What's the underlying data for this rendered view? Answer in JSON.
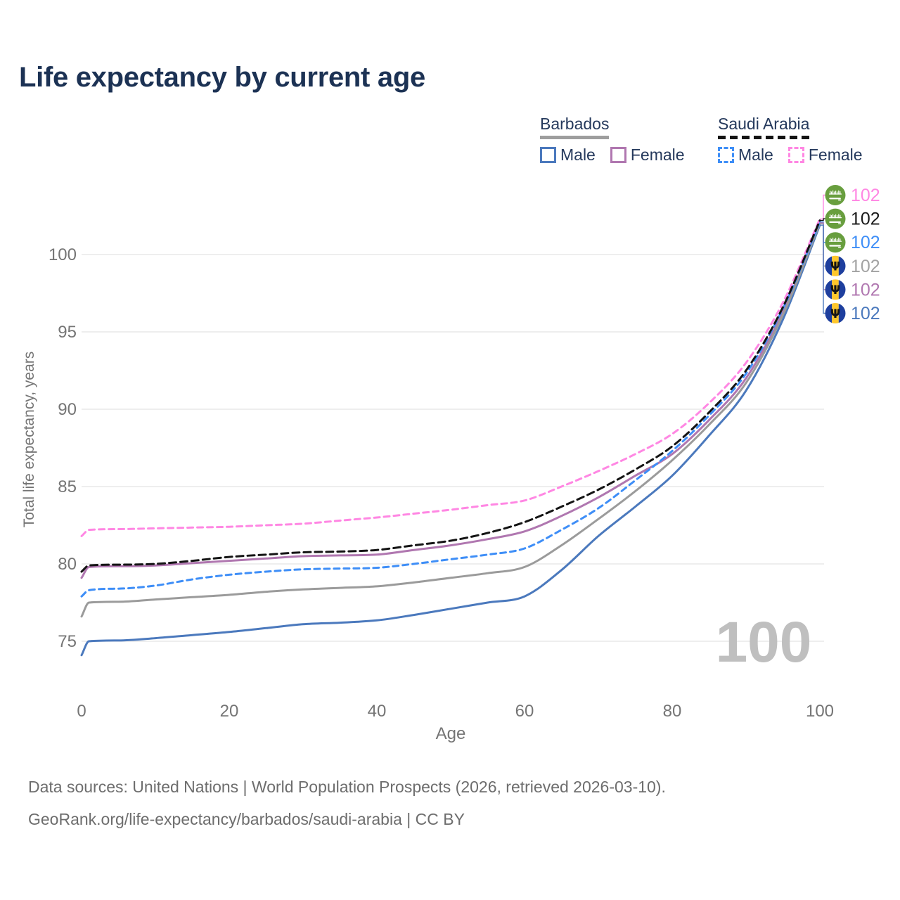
{
  "title": "Life expectancy by current age",
  "legend": {
    "groups": [
      {
        "label": "Barbados",
        "line_style": "solid",
        "line_color": "#9e9e9e",
        "items": [
          {
            "label": "Male",
            "color": "#4b79bd",
            "dashed": false
          },
          {
            "label": "Female",
            "color": "#b077b0",
            "dashed": false
          }
        ]
      },
      {
        "label": "Saudi Arabia",
        "line_style": "dashed",
        "line_color": "#141414",
        "items": [
          {
            "label": "Male",
            "color": "#3e8ef7",
            "dashed": true
          },
          {
            "label": "Female",
            "color": "#ff87e3",
            "dashed": true
          }
        ]
      }
    ]
  },
  "watermark": "100",
  "footer": {
    "line1": "Data sources: United Nations | World Population Prospects (2026, retrieved 2026-03-10).",
    "line2": "GeoRank.org/life-expectancy/barbados/saudi-arabia | CC BY"
  },
  "chart_data": {
    "type": "line",
    "title": "Life expectancy by current age",
    "xlabel": "Age",
    "ylabel": "Total life expectancy, years",
    "xlim": [
      0,
      100
    ],
    "ylim": [
      74,
      103
    ],
    "x_ticks": [
      0,
      20,
      40,
      60,
      80,
      100
    ],
    "y_ticks": [
      75,
      80,
      85,
      90,
      95,
      100
    ],
    "grid": "horizontal-only",
    "legend_position": "top-right",
    "x": [
      0,
      1,
      5,
      10,
      15,
      20,
      25,
      30,
      35,
      40,
      45,
      50,
      55,
      60,
      65,
      70,
      75,
      80,
      85,
      90,
      95,
      100
    ],
    "series": [
      {
        "name": "Saudi Arabia Female",
        "country": "Saudi Arabia",
        "sex": "Female",
        "color": "#ff87e3",
        "dashed": true,
        "flag_icon": "saudi-arabia-flag-icon",
        "end_label": "102",
        "end_label_color": "#ff87e3",
        "values": [
          81.8,
          82.2,
          82.25,
          82.3,
          82.35,
          82.4,
          82.5,
          82.6,
          82.8,
          83.0,
          83.25,
          83.5,
          83.8,
          84.1,
          85.0,
          86.0,
          87.1,
          88.4,
          90.4,
          93.0,
          96.9,
          102.3
        ]
      },
      {
        "name": "Saudi Arabia Total",
        "country": "Saudi Arabia",
        "sex": "Both",
        "color": "#141414",
        "dashed": true,
        "flag_icon": "saudi-arabia-flag-icon",
        "end_label": "102",
        "end_label_color": "#1a1a1a",
        "values": [
          79.5,
          79.9,
          79.95,
          80.0,
          80.2,
          80.45,
          80.6,
          80.75,
          80.8,
          80.9,
          81.2,
          81.5,
          82.0,
          82.7,
          83.7,
          84.8,
          86.1,
          87.6,
          89.8,
          92.5,
          96.6,
          102.2
        ]
      },
      {
        "name": "Saudi Arabia Male",
        "country": "Saudi Arabia",
        "sex": "Male",
        "color": "#3e8ef7",
        "dashed": true,
        "flag_icon": "saudi-arabia-flag-icon",
        "end_label": "102",
        "end_label_color": "#3e8ef7",
        "values": [
          77.9,
          78.3,
          78.4,
          78.6,
          79.0,
          79.3,
          79.5,
          79.65,
          79.7,
          79.75,
          80.0,
          80.3,
          80.6,
          81.0,
          82.2,
          83.6,
          85.4,
          87.3,
          89.6,
          92.3,
          96.5,
          102.1
        ]
      },
      {
        "name": "Barbados Total",
        "country": "Barbados",
        "sex": "Both",
        "color": "#9b9b9b",
        "dashed": false,
        "flag_icon": "barbados-flag-icon",
        "end_label": "102",
        "end_label_color": "#a3a3a3",
        "values": [
          76.6,
          77.5,
          77.55,
          77.7,
          77.85,
          78.0,
          78.2,
          78.35,
          78.45,
          78.55,
          78.8,
          79.1,
          79.4,
          79.8,
          81.2,
          82.9,
          84.7,
          86.7,
          89.0,
          91.7,
          96.1,
          102.0
        ]
      },
      {
        "name": "Barbados Female",
        "country": "Barbados",
        "sex": "Female",
        "color": "#b077b0",
        "dashed": false,
        "flag_icon": "barbados-flag-icon",
        "end_label": "102",
        "end_label_color": "#b077b0",
        "values": [
          79.1,
          79.8,
          79.85,
          79.9,
          80.05,
          80.2,
          80.35,
          80.5,
          80.55,
          80.6,
          80.9,
          81.2,
          81.6,
          82.1,
          83.1,
          84.3,
          85.7,
          87.1,
          89.3,
          92.0,
          96.3,
          102.05
        ]
      },
      {
        "name": "Barbados Male",
        "country": "Barbados",
        "sex": "Male",
        "color": "#4b79bd",
        "dashed": false,
        "flag_icon": "barbados-flag-icon",
        "end_label": "102",
        "end_label_color": "#4b79bd",
        "values": [
          74.1,
          75.0,
          75.05,
          75.2,
          75.4,
          75.6,
          75.85,
          76.1,
          76.2,
          76.35,
          76.7,
          77.1,
          77.5,
          77.9,
          79.6,
          81.8,
          83.7,
          85.7,
          88.3,
          91.2,
          95.8,
          101.9
        ]
      }
    ]
  }
}
